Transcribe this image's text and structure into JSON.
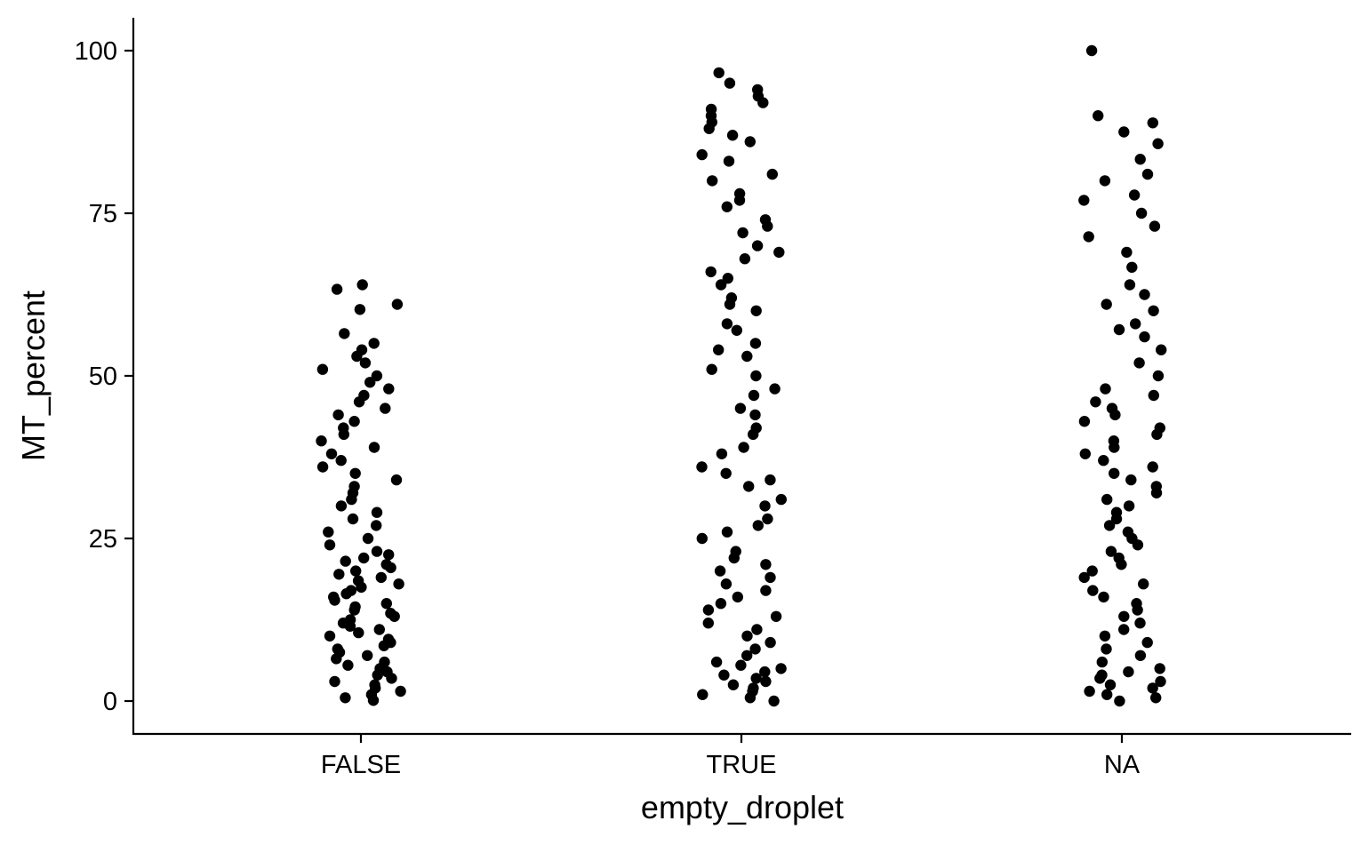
{
  "chart_data": {
    "type": "scatter",
    "style": "jitter strip plot",
    "xlabel": "empty_droplet",
    "ylabel": "MT_percent",
    "categories": [
      "FALSE",
      "TRUE",
      "NA"
    ],
    "yticks": [
      "0",
      "25",
      "50",
      "75",
      "100"
    ],
    "ylim": [
      -5,
      105
    ],
    "grid": false,
    "legend": "none",
    "point_color": "#000000",
    "series": [
      {
        "category": "FALSE",
        "values": [
          0.1,
          0.5,
          1,
          1.5,
          2,
          2.5,
          3,
          3.5,
          4,
          4.5,
          5,
          5.5,
          6,
          6.5,
          7,
          7.5,
          8,
          8.5,
          9,
          9.5,
          10,
          10.5,
          11,
          11.5,
          12,
          12.5,
          13,
          13.5,
          14,
          14.5,
          15,
          15.5,
          16,
          16.5,
          17,
          17.5,
          18,
          18.5,
          19,
          19.5,
          20,
          20.5,
          21,
          21.5,
          22,
          22.5,
          23,
          24,
          25,
          26,
          27,
          28,
          29,
          30,
          31,
          32,
          33,
          34,
          35,
          36,
          37,
          38,
          39,
          40,
          41,
          42,
          43,
          44,
          45,
          46,
          47,
          48,
          49,
          50,
          51,
          52,
          53,
          54,
          55,
          56.5,
          60.2,
          61,
          63.3,
          64
        ]
      },
      {
        "category": "TRUE",
        "values": [
          0,
          0.5,
          1,
          1.5,
          2,
          2.5,
          3,
          3.5,
          4,
          4.5,
          5,
          5.5,
          6,
          7,
          8,
          9,
          10,
          11,
          12,
          13,
          14,
          15,
          16,
          17,
          18,
          19,
          20,
          21,
          22,
          23,
          25,
          26,
          27,
          28,
          30,
          31,
          33,
          34,
          35,
          36,
          38,
          39,
          41,
          42,
          44,
          45,
          47,
          48,
          50,
          51,
          53,
          54,
          55,
          57,
          58,
          60,
          61,
          62,
          64,
          65,
          66,
          68,
          69,
          70,
          72,
          73,
          74,
          76,
          77,
          78,
          80,
          81,
          83,
          84,
          86,
          87,
          88,
          89,
          90,
          91,
          92,
          93,
          94,
          95,
          96.6
        ]
      },
      {
        "category": "NA",
        "values": [
          0,
          0.5,
          1,
          1.5,
          2,
          2.5,
          3,
          3.5,
          4,
          4.5,
          5,
          6,
          7,
          8,
          9,
          10,
          11,
          12,
          13,
          14,
          15,
          16,
          17,
          18,
          19,
          20,
          21,
          22,
          23,
          24,
          25,
          26,
          27,
          28,
          29,
          30,
          31,
          32,
          33,
          34,
          35,
          36,
          37,
          38,
          39,
          40,
          41,
          42,
          43,
          44,
          45,
          46,
          47,
          48,
          50,
          52,
          54,
          56,
          57.1,
          58,
          60,
          61,
          62.5,
          64,
          66.7,
          69,
          71.4,
          73,
          75,
          77,
          77.8,
          80,
          81,
          83.3,
          85.7,
          87.5,
          88.9,
          90,
          100
        ]
      }
    ]
  }
}
